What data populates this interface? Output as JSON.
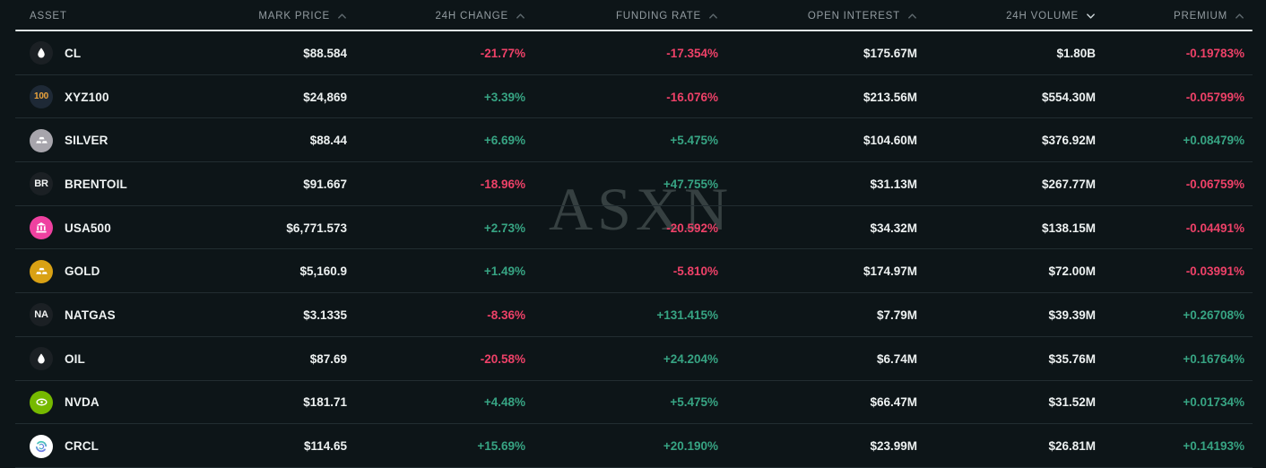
{
  "watermark": "ASXN",
  "colors": {
    "positive": "#37a483",
    "negative": "#ee4168",
    "background": "#0d1518",
    "header_text": "#929ba0",
    "value_text": "#edf1f1"
  },
  "table": {
    "columns": [
      {
        "label": "ASSET",
        "caret": "none",
        "active": false
      },
      {
        "label": "MARK PRICE",
        "caret": "up",
        "active": false
      },
      {
        "label": "24H CHANGE",
        "caret": "up",
        "active": false
      },
      {
        "label": "FUNDING RATE",
        "caret": "up",
        "active": false
      },
      {
        "label": "OPEN INTEREST",
        "caret": "up",
        "active": false
      },
      {
        "label": "24H VOLUME",
        "caret": "down",
        "active": true
      },
      {
        "label": "PREMIUM",
        "caret": "up",
        "active": false
      }
    ],
    "rows": [
      {
        "symbol": "CL",
        "icon": {
          "name": "oil-drop-icon",
          "type": "drop",
          "bg": "#1b2024",
          "fg": "#ffffff"
        },
        "mark_price": "$88.584",
        "change": "-21.77%",
        "change_dir": "neg",
        "funding": "-17.354%",
        "funding_dir": "neg",
        "open_interest": "$175.67M",
        "volume": "$1.80B",
        "premium": "-0.19783%",
        "premium_dir": "neg"
      },
      {
        "symbol": "XYZ100",
        "icon": {
          "name": "index-100-icon",
          "type": "text",
          "bg": "#1e2936",
          "fg": "#eda43c",
          "text": "100",
          "size": 10
        },
        "mark_price": "$24,869",
        "change": "+3.39%",
        "change_dir": "pos",
        "funding": "-16.076%",
        "funding_dir": "neg",
        "open_interest": "$213.56M",
        "volume": "$554.30M",
        "premium": "-0.05799%",
        "premium_dir": "neg"
      },
      {
        "symbol": "SILVER",
        "icon": {
          "name": "silver-bars-icon",
          "type": "bars",
          "bg": "#a7a5ac",
          "fg": "#ffffff"
        },
        "mark_price": "$88.44",
        "change": "+6.69%",
        "change_dir": "pos",
        "funding": "+5.475%",
        "funding_dir": "pos",
        "open_interest": "$104.60M",
        "volume": "$376.92M",
        "premium": "+0.08479%",
        "premium_dir": "pos"
      },
      {
        "symbol": "BRENTOIL",
        "icon": {
          "name": "brent-oil-icon",
          "type": "text",
          "bg": "#1b2024",
          "fg": "#f2f4f4",
          "text": "BR",
          "size": 11
        },
        "mark_price": "$91.667",
        "change": "-18.96%",
        "change_dir": "neg",
        "funding": "+47.755%",
        "funding_dir": "pos",
        "open_interest": "$31.13M",
        "volume": "$267.77M",
        "premium": "-0.06759%",
        "premium_dir": "neg"
      },
      {
        "symbol": "USA500",
        "icon": {
          "name": "usa500-index-icon",
          "type": "building",
          "bg": "#ef41a0",
          "fg": "#ffffff"
        },
        "mark_price": "$6,771.573",
        "change": "+2.73%",
        "change_dir": "pos",
        "funding": "-20.592%",
        "funding_dir": "neg",
        "open_interest": "$34.32M",
        "volume": "$138.15M",
        "premium": "-0.04491%",
        "premium_dir": "neg"
      },
      {
        "symbol": "GOLD",
        "icon": {
          "name": "gold-bars-icon",
          "type": "bars",
          "bg": "#d9a114",
          "fg": "#ffffff"
        },
        "mark_price": "$5,160.9",
        "change": "+1.49%",
        "change_dir": "pos",
        "funding": "-5.810%",
        "funding_dir": "neg",
        "open_interest": "$174.97M",
        "volume": "$72.00M",
        "premium": "-0.03991%",
        "premium_dir": "neg"
      },
      {
        "symbol": "NATGAS",
        "icon": {
          "name": "natgas-icon",
          "type": "text",
          "bg": "#1b2024",
          "fg": "#f2f4f4",
          "text": "NA",
          "size": 11
        },
        "mark_price": "$3.1335",
        "change": "-8.36%",
        "change_dir": "neg",
        "funding": "+131.415%",
        "funding_dir": "pos",
        "open_interest": "$7.79M",
        "volume": "$39.39M",
        "premium": "+0.26708%",
        "premium_dir": "pos"
      },
      {
        "symbol": "OIL",
        "icon": {
          "name": "oil-drop-icon",
          "type": "drop",
          "bg": "#1b2024",
          "fg": "#ffffff"
        },
        "mark_price": "$87.69",
        "change": "-20.58%",
        "change_dir": "neg",
        "funding": "+24.204%",
        "funding_dir": "pos",
        "open_interest": "$6.74M",
        "volume": "$35.76M",
        "premium": "+0.16764%",
        "premium_dir": "pos"
      },
      {
        "symbol": "NVDA",
        "icon": {
          "name": "nvidia-icon",
          "type": "eye",
          "bg": "#76b900",
          "fg": "#ffffff"
        },
        "mark_price": "$181.71",
        "change": "+4.48%",
        "change_dir": "pos",
        "funding": "+5.475%",
        "funding_dir": "pos",
        "open_interest": "$66.47M",
        "volume": "$31.52M",
        "premium": "+0.01734%",
        "premium_dir": "pos"
      },
      {
        "symbol": "CRCL",
        "icon": {
          "name": "circle-ring-icon",
          "type": "ring",
          "bg": "#ffffff",
          "fg": "#41d1b5"
        },
        "mark_price": "$114.65",
        "change": "+15.69%",
        "change_dir": "pos",
        "funding": "+20.190%",
        "funding_dir": "pos",
        "open_interest": "$23.99M",
        "volume": "$26.81M",
        "premium": "+0.14193%",
        "premium_dir": "pos"
      }
    ]
  }
}
